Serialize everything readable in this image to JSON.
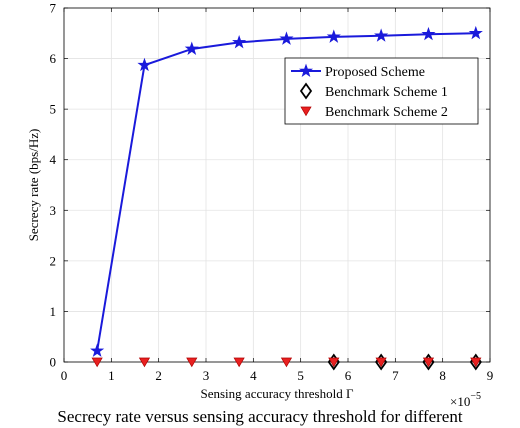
{
  "chart_data": {
    "type": "line",
    "xlabel": "Sensing accuracy threshold Γ",
    "ylabel": "Secrecy rate (bps/Hz)",
    "x_multiplier": "×10",
    "x_exponent": "−5",
    "xlim": [
      0,
      9
    ],
    "ylim": [
      0,
      7
    ],
    "xticks": [
      "0",
      "1",
      "2",
      "3",
      "4",
      "5",
      "6",
      "7",
      "8",
      "9"
    ],
    "yticks": [
      "0",
      "1",
      "2",
      "3",
      "4",
      "5",
      "6",
      "7"
    ],
    "grid": true,
    "legend_position": "upper-right",
    "series": [
      {
        "name": "Proposed Scheme",
        "marker": "star",
        "line": true,
        "color": "#1a1adb",
        "x": [
          0.7,
          1.7,
          2.7,
          3.7,
          4.7,
          5.7,
          6.7,
          7.7,
          8.7
        ],
        "y": [
          0.22,
          5.87,
          6.19,
          6.32,
          6.39,
          6.43,
          6.45,
          6.48,
          6.5
        ]
      },
      {
        "name": "Benchmark Scheme 1",
        "marker": "diamond",
        "line": false,
        "color": "#000000",
        "x": [
          5.7,
          6.7,
          7.7,
          8.7
        ],
        "y": [
          0,
          0,
          0,
          0
        ]
      },
      {
        "name": "Benchmark Scheme 2",
        "marker": "triangle-down",
        "line": false,
        "color": "#e82020",
        "x": [
          0.7,
          1.7,
          2.7,
          3.7,
          4.7,
          5.7,
          6.7,
          7.7,
          8.7
        ],
        "y": [
          0,
          0,
          0,
          0,
          0,
          0,
          0,
          0,
          0
        ]
      }
    ]
  },
  "caption": "Secrecy rate versus sensing accuracy threshold for different"
}
